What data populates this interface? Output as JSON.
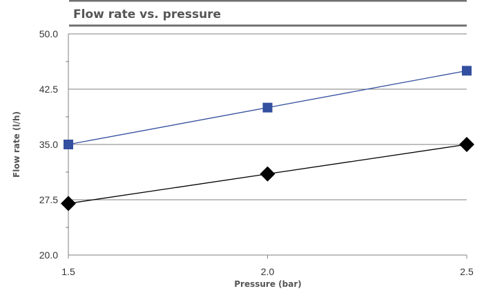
{
  "chart_data": {
    "type": "line",
    "title": "Flow rate vs. pressure",
    "xlabel": "Pressure (bar)",
    "ylabel": "Flow rate (l/h)",
    "x": [
      1.5,
      2.0,
      2.5
    ],
    "x_tick_labels": [
      "1.5",
      "2.0",
      "2.5"
    ],
    "ylim": [
      20.0,
      50.0
    ],
    "y_ticks": [
      20.0,
      27.5,
      35.0,
      42.5,
      50.0
    ],
    "y_tick_labels": [
      "20.0",
      "27.5",
      "35.0",
      "42.5",
      "50.0"
    ],
    "grid": true,
    "legend": "none",
    "series": [
      {
        "values": [
          35.0,
          40.0,
          45.0
        ],
        "color": "#334f9f",
        "marker": "square"
      },
      {
        "values": [
          27.0,
          31.0,
          35.0
        ],
        "color": "#000000",
        "marker": "diamond"
      }
    ]
  }
}
